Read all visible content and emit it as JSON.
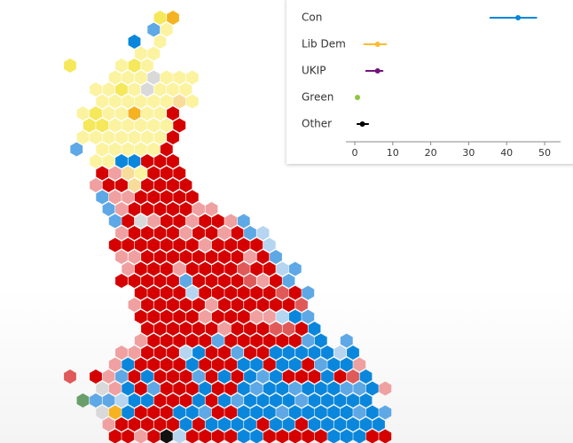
{
  "chart_data": {
    "type": "range-dot",
    "categories": [
      "Con",
      "Lib Dem",
      "UKIP",
      "Green",
      "Other"
    ],
    "values": [
      43,
      6,
      6,
      0.7,
      2
    ],
    "lower": [
      35.5,
      2.3,
      2.8,
      null,
      0.5
    ],
    "upper": [
      48,
      8.4,
      7.5,
      null,
      3.7
    ],
    "colors": [
      "#0087dc",
      "#fdbb30",
      "#70147a",
      "#8dc63f",
      "#000000"
    ],
    "xlim": [
      0,
      50
    ],
    "xticks": [
      0,
      10,
      20,
      30,
      40,
      50
    ]
  }
}
